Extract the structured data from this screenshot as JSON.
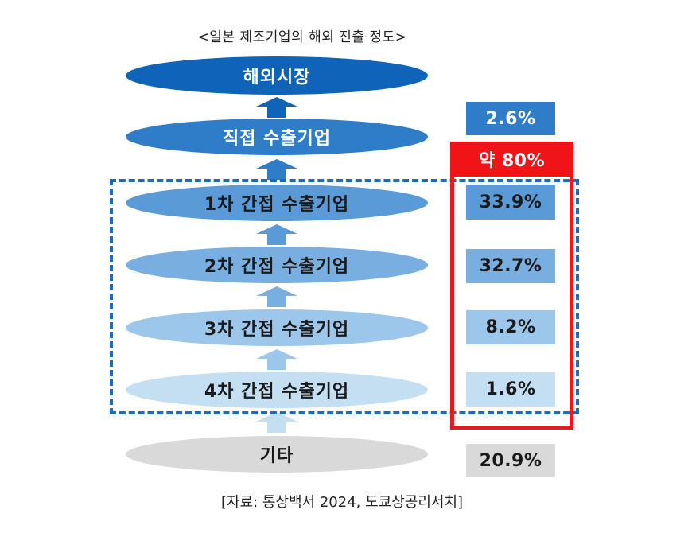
{
  "title": "<일본 제조기업의 해외 진출 정도>",
  "levels": [
    {
      "label": "해외시장",
      "bg": "#0f63b8",
      "color": "#ffffff"
    },
    {
      "label": "직접 수출기업",
      "bg": "#2f7cc8",
      "color": "#ffffff"
    },
    {
      "label": "1차 간접 수출기업",
      "bg": "#5a9ad6",
      "color": "#1a1a1a"
    },
    {
      "label": "2차 간접 수출기업",
      "bg": "#78aee0",
      "color": "#1a1a1a"
    },
    {
      "label": "3차 간접 수출기업",
      "bg": "#9cc6ea",
      "color": "#1a1a1a"
    },
    {
      "label": "4차 간접 수출기업",
      "bg": "#c4def2",
      "color": "#1a1a1a"
    },
    {
      "label": "기타",
      "bg": "#d9d9d9",
      "color": "#1a1a1a"
    }
  ],
  "arrow_colors": [
    "#0f63b8",
    "#2f7cc8",
    "#5a9ad6",
    "#78aee0",
    "#9cc6ea",
    "#c4def2"
  ],
  "values": [
    {
      "text": "2.6%",
      "bg": "#2f7cc8",
      "color": "#ffffff"
    },
    {
      "text": "33.9%",
      "bg": "#5a9ad6",
      "color": "#1a1a1a"
    },
    {
      "text": "32.7%",
      "bg": "#78aee0",
      "color": "#1a1a1a"
    },
    {
      "text": "8.2%",
      "bg": "#9cc6ea",
      "color": "#1a1a1a"
    },
    {
      "text": "1.6%",
      "bg": "#c4def2",
      "color": "#1a1a1a"
    },
    {
      "text": "20.9%",
      "bg": "#d9d9d9",
      "color": "#1a1a1a"
    }
  ],
  "highlight_label": "약 80%",
  "source": "[자료: 통상백서 2024, 도쿄상공리서치]"
}
